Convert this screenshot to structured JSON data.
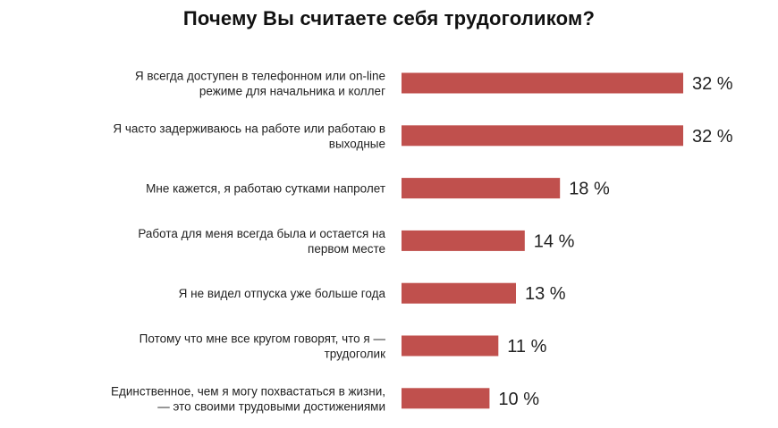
{
  "chart_data": {
    "type": "bar",
    "orientation": "horizontal",
    "title": "Почему Вы считаете себя трудоголиком?",
    "categories": [
      [
        "Я всегда доступен в телефонном или on-line",
        "режиме для начальника и коллег"
      ],
      [
        "Я часто задерживаюсь на работе или работаю в",
        "выходные"
      ],
      [
        "Мне кажется, я работаю сутками напролет"
      ],
      [
        "Работа для меня всегда была и остается на",
        "первом месте"
      ],
      [
        "Я не видел отпуска уже больше года"
      ],
      [
        "Потому что мне все кругом говорят, что я —",
        "трудоголик"
      ],
      [
        "Единственное, чем я могу похвастаться в жизни,",
        "— это своими трудовыми достижениями"
      ]
    ],
    "values": [
      32,
      32,
      18,
      14,
      13,
      11,
      10
    ],
    "value_labels": [
      "32 %",
      "32 %",
      "18 %",
      "14 %",
      "13 %",
      "11 %",
      "10 %"
    ],
    "unit": "%",
    "bar_color": "#c0504d",
    "grid": false,
    "legend": "none"
  }
}
